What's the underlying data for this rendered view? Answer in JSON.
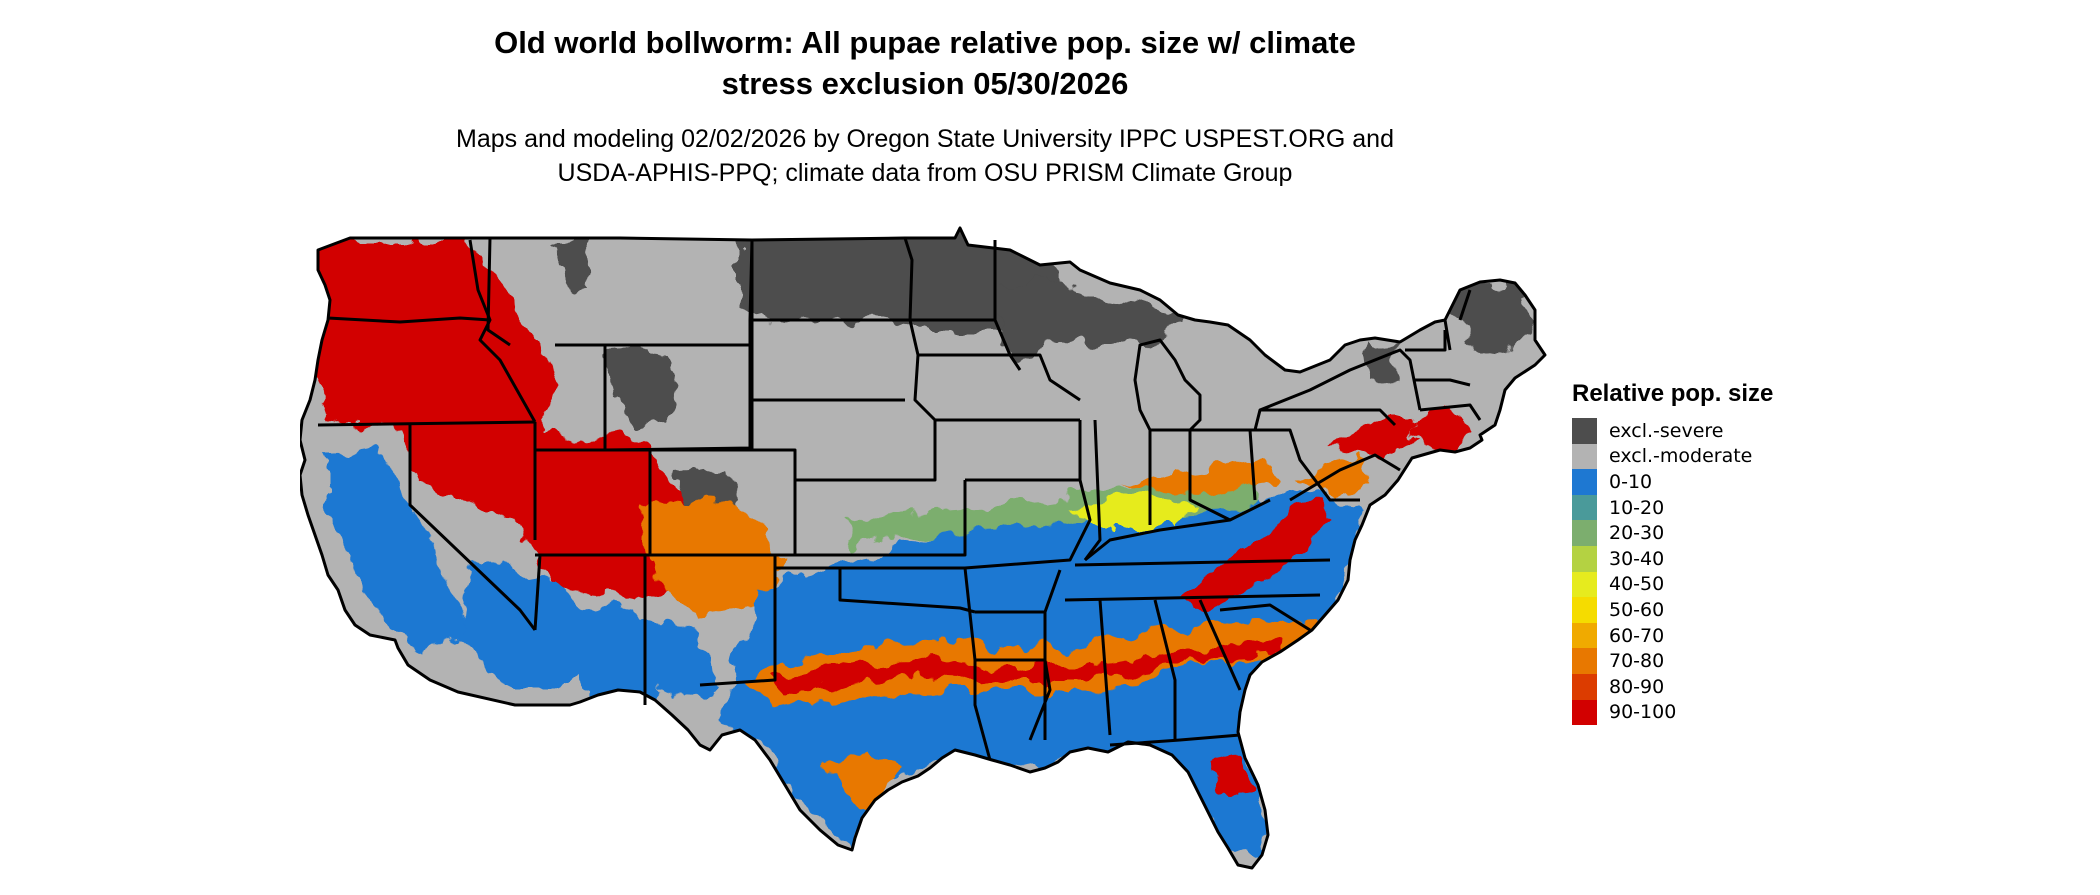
{
  "title": {
    "line1": "Old world bollworm: All pupae relative pop. size w/ climate",
    "line2": "stress exclusion 05/30/2026"
  },
  "subtitle": {
    "line1": "Maps and modeling 02/02/2026 by Oregon State University IPPC USPEST.ORG and",
    "line2": "USDA-APHIS-PPQ; climate data from OSU PRISM Climate Group"
  },
  "legend": {
    "title": "Relative pop. size",
    "items": [
      {
        "label": "excl.-severe",
        "color": "#4d4d4d"
      },
      {
        "label": "excl.-moderate",
        "color": "#b3b3b3"
      },
      {
        "label": "0-10",
        "color": "#1e78d2"
      },
      {
        "label": "10-20",
        "color": "#4a9a9a"
      },
      {
        "label": "20-30",
        "color": "#7cae6e"
      },
      {
        "label": "30-40",
        "color": "#b4d242"
      },
      {
        "label": "40-50",
        "color": "#e6eb1e"
      },
      {
        "label": "50-60",
        "color": "#f5dc00"
      },
      {
        "label": "60-70",
        "color": "#f0aa00"
      },
      {
        "label": "70-80",
        "color": "#e87800"
      },
      {
        "label": "80-90",
        "color": "#dc3c00"
      },
      {
        "label": "90-100",
        "color": "#d20000"
      }
    ]
  },
  "map": {
    "region": "Contiguous United States",
    "boundary_color": "#000000"
  }
}
